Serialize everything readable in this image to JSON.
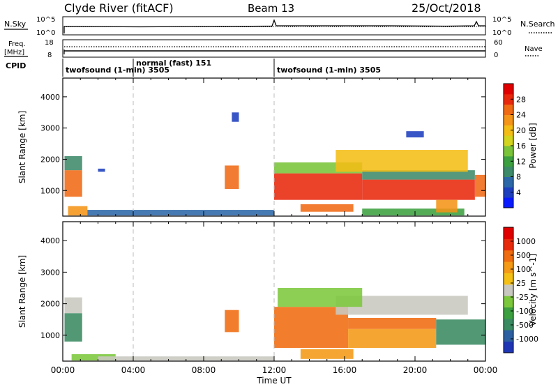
{
  "header": {
    "station": "Clyde River (fitACF)",
    "beam": "Beam 13",
    "date": "25/Oct/2018"
  },
  "top_panels": {
    "nsky_label": "N.Sky",
    "nsearch_label": "N.Search",
    "nsky_ticks": [
      "10^5",
      "10^0"
    ],
    "nsearch_ticks": [
      "10^5",
      "10^0"
    ],
    "freq_label_line1": "Freq.",
    "freq_label_line2": "[MHz]",
    "freq_ticks": [
      "18",
      "8"
    ],
    "nave_label": "Nave",
    "nave_ticks": [
      "60",
      "0"
    ],
    "cpid_label": "CPID",
    "cpid_segments": [
      {
        "label": "twofsound (1-min) 3505",
        "start_hour": 0
      },
      {
        "label": "normal (fast) 151",
        "start_hour": 4
      },
      {
        "label": "twofsound (1-min) 3505",
        "start_hour": 12
      }
    ]
  },
  "chart_data": [
    {
      "type": "heatmap",
      "title": "",
      "xlabel": "Time UT",
      "ylabel": "Slant Range [km]",
      "xlim": [
        0,
        24
      ],
      "ylim": [
        180,
        4600
      ],
      "x_ticks": [
        "00:00",
        "04:00",
        "08:00",
        "12:00",
        "16:00",
        "20:00",
        "00:00"
      ],
      "y_ticks": [
        "1000",
        "2000",
        "3000",
        "4000"
      ],
      "colorbar": {
        "label": "Power [dB]",
        "ticks": [
          "4",
          "8",
          "12",
          "16",
          "20",
          "24",
          "28"
        ],
        "colors": [
          "#0a1aff",
          "#1e3fbe",
          "#2c68a8",
          "#3d8a6a",
          "#3ca040",
          "#7ac43a",
          "#d2d41e",
          "#f4bd16",
          "#f49418",
          "#f06a14",
          "#e8280c",
          "#e00000"
        ]
      },
      "regions": [
        {
          "t0": 0.1,
          "t1": 1.1,
          "r0": 800,
          "r1": 1650,
          "level": 9
        },
        {
          "t0": 0.1,
          "t1": 1.1,
          "r0": 1650,
          "r1": 2100,
          "level": 3
        },
        {
          "t0": 0.3,
          "t1": 1.4,
          "r0": 200,
          "r1": 500,
          "level": 8
        },
        {
          "t0": 1.4,
          "t1": 12.0,
          "r0": 200,
          "r1": 380,
          "level": 2
        },
        {
          "t0": 2.0,
          "t1": 2.4,
          "r0": 1600,
          "r1": 1700,
          "level": 1
        },
        {
          "t0": 9.2,
          "t1": 10.0,
          "r0": 1050,
          "r1": 1800,
          "level": 9
        },
        {
          "t0": 9.6,
          "t1": 10.0,
          "r0": 3200,
          "r1": 3500,
          "level": 1
        },
        {
          "t0": 12.0,
          "t1": 17.0,
          "r0": 700,
          "r1": 1550,
          "level": 10
        },
        {
          "t0": 12.0,
          "t1": 17.0,
          "r0": 1550,
          "r1": 1900,
          "level": 5
        },
        {
          "t0": 17.0,
          "t1": 23.4,
          "r0": 700,
          "r1": 1350,
          "level": 10
        },
        {
          "t0": 17.0,
          "t1": 23.4,
          "r0": 1350,
          "r1": 1650,
          "level": 3
        },
        {
          "t0": 15.5,
          "t1": 23.0,
          "r0": 1600,
          "r1": 2300,
          "level": 7
        },
        {
          "t0": 13.5,
          "t1": 16.5,
          "r0": 320,
          "r1": 560,
          "level": 9
        },
        {
          "t0": 17.0,
          "t1": 22.8,
          "r0": 200,
          "r1": 420,
          "level": 4
        },
        {
          "t0": 21.2,
          "t1": 22.4,
          "r0": 300,
          "r1": 700,
          "level": 8
        },
        {
          "t0": 23.4,
          "t1": 24.0,
          "r0": 800,
          "r1": 1500,
          "level": 9
        },
        {
          "t0": 19.5,
          "t1": 20.5,
          "r0": 2700,
          "r1": 2900,
          "level": 1
        }
      ]
    },
    {
      "type": "heatmap",
      "title": "",
      "xlabel": "Time UT",
      "ylabel": "Slant Range [km]",
      "xlim": [
        0,
        24
      ],
      "ylim": [
        180,
        4600
      ],
      "x_ticks": [
        "00:00",
        "04:00",
        "08:00",
        "12:00",
        "16:00",
        "20:00",
        "00:00"
      ],
      "y_ticks": [
        "1000",
        "2000",
        "3000",
        "4000"
      ],
      "colorbar": {
        "label": "Velocity [m s^-1]",
        "ticks": [
          "1000",
          "500",
          "100",
          "25",
          "-25",
          "-100",
          "-500",
          "-1000"
        ],
        "colors": [
          "#1e36b4",
          "#2c60a0",
          "#3a8a62",
          "#3ca040",
          "#7cc83c",
          "#c8c8c0",
          "#f4c016",
          "#f49a16",
          "#f06c10",
          "#e82a0c",
          "#e00000"
        ]
      },
      "regions": [
        {
          "t0": 0.1,
          "t1": 1.1,
          "r0": 800,
          "r1": 1700,
          "level": 2
        },
        {
          "t0": 0.1,
          "t1": 1.1,
          "r0": 1700,
          "r1": 2200,
          "level": 5
        },
        {
          "t0": 0.5,
          "t1": 3.0,
          "r0": 200,
          "r1": 400,
          "level": 4
        },
        {
          "t0": 2.0,
          "t1": 12.0,
          "r0": 200,
          "r1": 330,
          "level": 5
        },
        {
          "t0": 9.2,
          "t1": 10.0,
          "r0": 1100,
          "r1": 1800,
          "level": 8
        },
        {
          "t0": 12.0,
          "t1": 16.2,
          "r0": 600,
          "r1": 1900,
          "level": 8
        },
        {
          "t0": 16.2,
          "t1": 21.2,
          "r0": 600,
          "r1": 1200,
          "level": 7
        },
        {
          "t0": 16.2,
          "t1": 21.2,
          "r0": 1200,
          "r1": 1550,
          "level": 8
        },
        {
          "t0": 15.5,
          "t1": 23.0,
          "r0": 1650,
          "r1": 2250,
          "level": 5
        },
        {
          "t0": 21.2,
          "t1": 24.0,
          "r0": 700,
          "r1": 1500,
          "level": 2
        },
        {
          "t0": 13.5,
          "t1": 16.5,
          "r0": 250,
          "r1": 560,
          "level": 7
        },
        {
          "t0": 12.2,
          "t1": 17.0,
          "r0": 1900,
          "r1": 2500,
          "level": 4
        }
      ]
    }
  ]
}
